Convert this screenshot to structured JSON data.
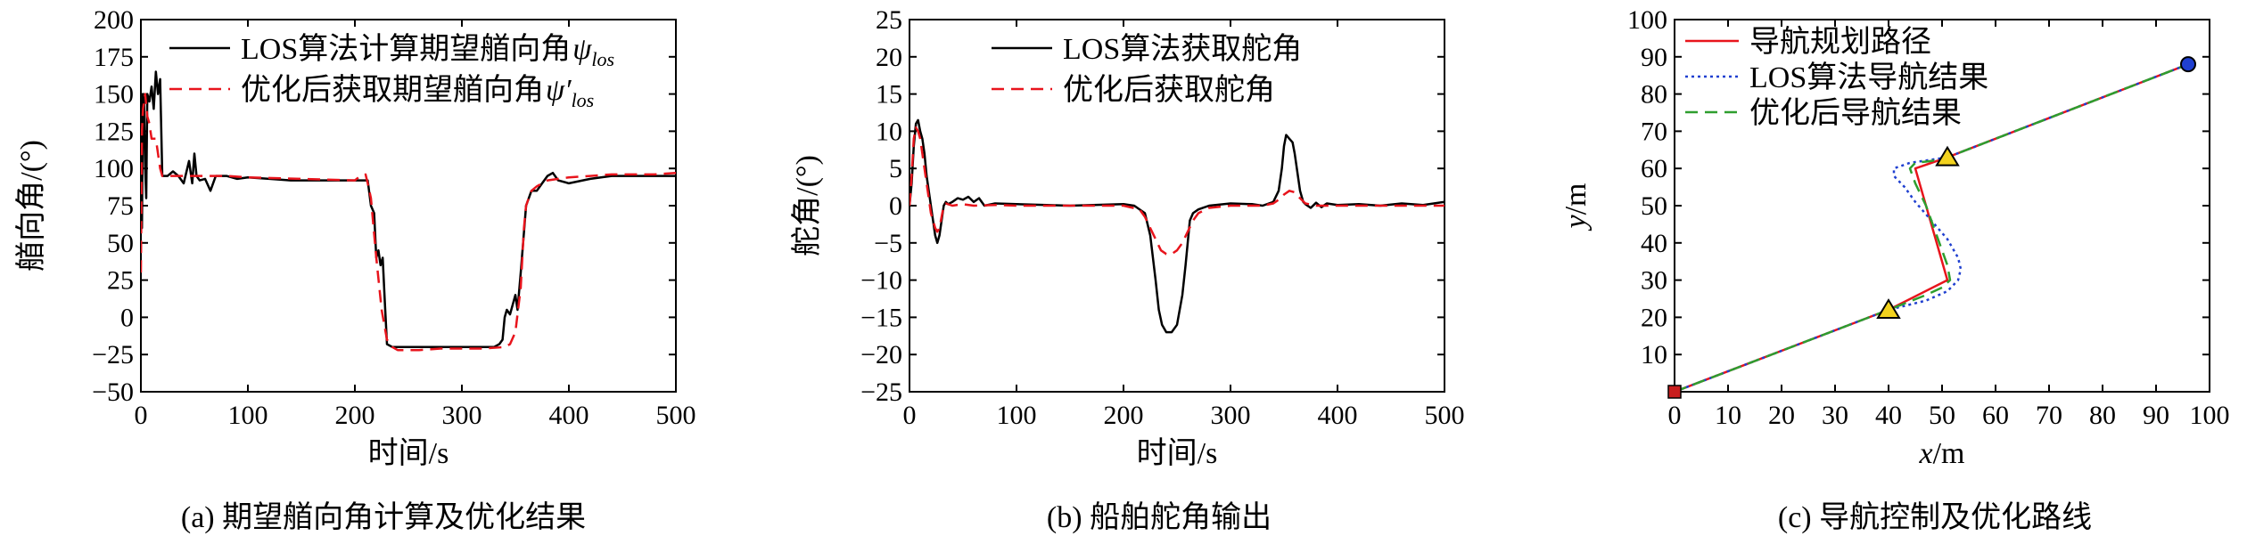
{
  "chart_data": [
    {
      "type": "line",
      "caption": "(a) 期望艏向角计算及优化结果",
      "xlabel": "时间/s",
      "ylabel": "艏向角/(°)",
      "xlim": [
        0,
        500
      ],
      "ylim": [
        -50,
        200
      ],
      "xticks": [
        0,
        100,
        200,
        300,
        400,
        500
      ],
      "yticks": [
        -50,
        -25,
        0,
        25,
        50,
        75,
        100,
        125,
        150,
        175,
        200
      ],
      "legend_position": "top-right",
      "series": [
        {
          "name": "LOS算法计算期望艏向角",
          "symbol": "ψ",
          "subscript": "los",
          "color": "#000000",
          "dash": "solid",
          "x": [
            0,
            1,
            2,
            3,
            4,
            5,
            6,
            8,
            10,
            12,
            14,
            16,
            18,
            20,
            25,
            30,
            35,
            40,
            45,
            48,
            50,
            52,
            55,
            60,
            65,
            70,
            80,
            90,
            100,
            120,
            140,
            160,
            180,
            200,
            210,
            212,
            215,
            218,
            220,
            222,
            224,
            226,
            228,
            230,
            235,
            240,
            260,
            280,
            300,
            320,
            330,
            335,
            338,
            340,
            342,
            345,
            350,
            352,
            355,
            360,
            365,
            370,
            375,
            380,
            385,
            390,
            400,
            420,
            440,
            460,
            480,
            500
          ],
          "y": [
            150,
            60,
            150,
            145,
            100,
            80,
            150,
            145,
            155,
            140,
            165,
            150,
            160,
            95,
            95,
            98,
            95,
            90,
            105,
            90,
            110,
            95,
            92,
            93,
            85,
            95,
            95,
            93,
            94,
            93,
            92,
            92,
            92,
            92,
            92,
            92,
            75,
            70,
            40,
            45,
            35,
            40,
            10,
            -18,
            -20,
            -20,
            -20,
            -20,
            -20,
            -20,
            -20,
            -18,
            -15,
            0,
            5,
            2,
            15,
            5,
            30,
            75,
            85,
            85,
            90,
            95,
            97,
            92,
            90,
            93,
            95,
            95,
            95,
            95
          ]
        },
        {
          "name": "优化后获取期望艏向角",
          "symbol": "ψ′",
          "subscript": "los",
          "color": "#e8141c",
          "dash": "dashed",
          "x": [
            0,
            1,
            2,
            4,
            6,
            8,
            10,
            14,
            18,
            20,
            30,
            40,
            50,
            60,
            80,
            100,
            150,
            200,
            205,
            210,
            212,
            215,
            220,
            225,
            230,
            235,
            240,
            250,
            260,
            280,
            300,
            320,
            340,
            345,
            350,
            355,
            358,
            360,
            365,
            370,
            375,
            380,
            390,
            400,
            420,
            440,
            460,
            480,
            500
          ],
          "y": [
            30,
            125,
            140,
            150,
            135,
            130,
            120,
            120,
            100,
            95,
            95,
            95,
            95,
            95,
            95,
            94,
            93,
            92,
            95,
            96,
            90,
            80,
            40,
            5,
            -15,
            -20,
            -22,
            -22,
            -22,
            -21,
            -21,
            -21,
            -20,
            -18,
            -10,
            20,
            60,
            75,
            85,
            88,
            90,
            92,
            93,
            94,
            95,
            96,
            96,
            96,
            97
          ]
        }
      ]
    },
    {
      "type": "line",
      "caption": "(b) 船舶舵角输出",
      "xlabel": "时间/s",
      "ylabel": "舵角/(°)",
      "xlim": [
        0,
        500
      ],
      "ylim": [
        -25,
        25
      ],
      "xticks": [
        0,
        100,
        200,
        300,
        400,
        500
      ],
      "yticks": [
        -25,
        -20,
        -15,
        -10,
        -5,
        0,
        5,
        10,
        15,
        20,
        25
      ],
      "legend_position": "top-right",
      "series": [
        {
          "name": "LOS算法获取舵角",
          "color": "#000000",
          "dash": "solid",
          "x": [
            0,
            2,
            4,
            6,
            8,
            10,
            12,
            14,
            16,
            18,
            20,
            22,
            24,
            26,
            28,
            30,
            32,
            34,
            36,
            40,
            45,
            50,
            55,
            60,
            65,
            70,
            80,
            100,
            150,
            200,
            210,
            220,
            225,
            230,
            233,
            236,
            240,
            245,
            250,
            255,
            258,
            260,
            262,
            265,
            270,
            280,
            300,
            320,
            330,
            340,
            345,
            348,
            350,
            352,
            355,
            358,
            360,
            362,
            365,
            368,
            370,
            375,
            380,
            385,
            390,
            400,
            420,
            440,
            460,
            480,
            500
          ],
          "y": [
            0,
            3,
            8,
            11,
            11.5,
            10,
            9,
            7,
            4,
            2,
            0,
            -2,
            -4,
            -5,
            -4,
            -2,
            0,
            0.5,
            0.2,
            0.5,
            1,
            0.8,
            1.2,
            0.5,
            1,
            0,
            0.3,
            0.2,
            0,
            0.2,
            0,
            -1,
            -4,
            -10,
            -14,
            -16,
            -17,
            -17,
            -16,
            -12,
            -8,
            -5,
            -2,
            -1,
            -0.5,
            0,
            0.3,
            0.2,
            0,
            0.5,
            2,
            5,
            8,
            9.5,
            9,
            8.5,
            7,
            5,
            2,
            0.5,
            0.2,
            -0.3,
            0.4,
            -0.2,
            0.3,
            0.1,
            0.2,
            0,
            0.3,
            0.1,
            0.5
          ]
        },
        {
          "name": "优化后获取舵角",
          "color": "#e8141c",
          "dash": "dashed",
          "x": [
            0,
            2,
            4,
            6,
            8,
            10,
            12,
            14,
            16,
            18,
            20,
            22,
            24,
            26,
            28,
            30,
            32,
            34,
            40,
            50,
            60,
            80,
            100,
            150,
            200,
            215,
            220,
            225,
            230,
            235,
            240,
            245,
            250,
            255,
            260,
            265,
            270,
            280,
            300,
            330,
            340,
            345,
            350,
            355,
            360,
            365,
            370,
            380,
            400,
            450,
            500
          ],
          "y": [
            0,
            4,
            9,
            10.5,
            10,
            9,
            7,
            5,
            3,
            1,
            -1,
            -2,
            -3,
            -3.5,
            -3,
            -1.5,
            0,
            0.3,
            0,
            0.2,
            0,
            0.1,
            0,
            0,
            0,
            -0.5,
            -1.5,
            -3,
            -4.5,
            -6,
            -6.5,
            -6.5,
            -6,
            -5,
            -3.5,
            -2,
            -1,
            -0.3,
            0,
            0,
            0.3,
            0.8,
            1.5,
            2,
            1.8,
            1,
            0.3,
            0,
            0,
            0,
            0
          ]
        }
      ]
    },
    {
      "type": "line",
      "caption": "(c) 导航控制及优化路线",
      "xlabel": "x/m",
      "ylabel": "y/m",
      "xlim": [
        0,
        100
      ],
      "ylim": [
        0,
        100
      ],
      "xticks": [
        0,
        10,
        20,
        30,
        40,
        50,
        60,
        70,
        80,
        90,
        100
      ],
      "yticks": [
        10,
        20,
        30,
        40,
        50,
        60,
        70,
        80,
        90,
        100
      ],
      "legend_position": "top-left",
      "series": [
        {
          "name": "导航规划路径",
          "color": "#e8141c",
          "dash": "solid",
          "x": [
            0,
            40,
            51,
            45,
            51,
            96
          ],
          "y": [
            0,
            22,
            30,
            60,
            63,
            88
          ]
        },
        {
          "name": "LOS算法导航结果",
          "color": "#2040d0",
          "dash": "dotted",
          "x": [
            0,
            40,
            47,
            51,
            53,
            53.5,
            53,
            51,
            48,
            45,
            43,
            41,
            41,
            44,
            51,
            96
          ],
          "y": [
            0,
            22,
            24.5,
            27,
            30,
            33,
            36,
            41,
            46,
            51,
            55,
            58,
            60,
            61.5,
            63,
            88
          ]
        },
        {
          "name": "优化后导航结果",
          "color": "#2e9e2e",
          "dash": "dashed",
          "x": [
            0,
            40,
            47,
            50,
            51.5,
            51,
            49,
            47,
            45,
            44,
            45,
            48,
            51,
            96
          ],
          "y": [
            0,
            22,
            26,
            28,
            30,
            34,
            42,
            50,
            56,
            60,
            61.5,
            62,
            63,
            88
          ]
        }
      ],
      "markers": [
        {
          "name": "start",
          "shape": "square",
          "x": 0,
          "y": 0,
          "color": "#c81e1e"
        },
        {
          "name": "waypoint",
          "shape": "triangle",
          "x": 40,
          "y": 22,
          "color": "#f2d21e"
        },
        {
          "name": "waypoint",
          "shape": "triangle",
          "x": 51,
          "y": 63,
          "color": "#f2d21e"
        },
        {
          "name": "end",
          "shape": "circle",
          "x": 96,
          "y": 88,
          "color": "#2040d0"
        }
      ]
    }
  ]
}
